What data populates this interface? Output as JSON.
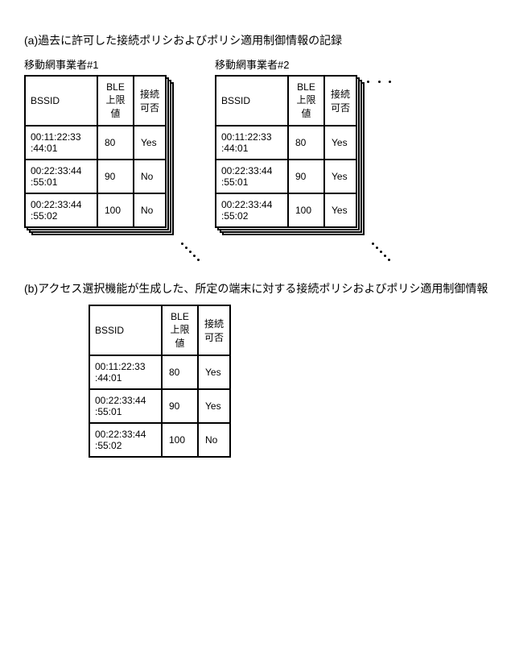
{
  "section_a": {
    "caption": "(a)過去に許可した接続ポリシおよびポリシ適用制御情報の記録",
    "headers": {
      "bssid": "BSSID",
      "ble": "BLE\n上限値",
      "conn": "接続\n可否"
    },
    "operator1": {
      "label": "移動網事業者#1",
      "rows": [
        {
          "bssid": "00:11:22:33\n:44:01",
          "ble": "80",
          "conn": "Yes"
        },
        {
          "bssid": "00:22:33:44\n:55:01",
          "ble": "90",
          "conn": "No"
        },
        {
          "bssid": "00:22:33:44\n:55:02",
          "ble": "100",
          "conn": "No"
        }
      ]
    },
    "operator2": {
      "label": "移動網事業者#2",
      "rows": [
        {
          "bssid": "00:11:22:33\n:44:01",
          "ble": "80",
          "conn": "Yes"
        },
        {
          "bssid": "00:22:33:44\n:55:01",
          "ble": "90",
          "conn": "Yes"
        },
        {
          "bssid": "00:22:33:44\n:55:02",
          "ble": "100",
          "conn": "Yes"
        }
      ]
    }
  },
  "section_b": {
    "caption": "(b)アクセス選択機能が生成した、所定の端末に対する接続ポリシおよびポリシ適用制御情報",
    "headers": {
      "bssid": "BSSID",
      "ble": "BLE\n上限値",
      "conn": "接続\n可否"
    },
    "rows": [
      {
        "bssid": "00:11:22:33\n:44:01",
        "ble": "80",
        "conn": "Yes"
      },
      {
        "bssid": "00:22:33:44\n:55:01",
        "ble": "90",
        "conn": "Yes"
      },
      {
        "bssid": "00:22:33:44\n:55:02",
        "ble": "100",
        "conn": "No"
      }
    ]
  }
}
